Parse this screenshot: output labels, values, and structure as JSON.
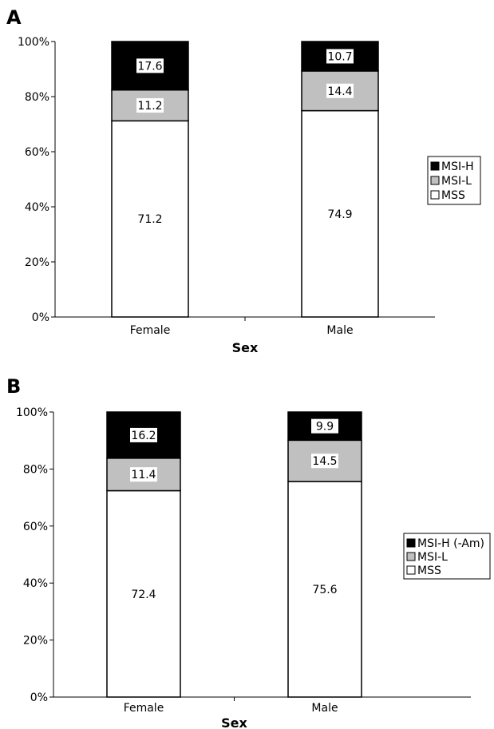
{
  "chart_data": [
    {
      "type": "bar",
      "stacked": true,
      "panel_label": "A",
      "categories": [
        "Female",
        "Male"
      ],
      "series": [
        {
          "name": "MSS",
          "values": [
            71.2,
            74.9
          ],
          "color": "#ffffff"
        },
        {
          "name": "MSI-L",
          "values": [
            11.2,
            14.4
          ],
          "color": "#c0c0c0"
        },
        {
          "name": "MSI-H",
          "values": [
            17.6,
            10.7
          ],
          "color": "#000000"
        }
      ],
      "value_labels": [
        [
          "71.2",
          "74.9"
        ],
        [
          "11.2",
          "14.4"
        ],
        [
          "17.6",
          "10.7"
        ]
      ],
      "yticks": [
        "0%",
        "20%",
        "40%",
        "60%",
        "80%",
        "100%"
      ],
      "ylim": [
        0,
        100
      ],
      "xlabel": "Sex",
      "legend_labels": [
        "MSI-H",
        "MSI-L",
        "MSS"
      ],
      "legend_position": "right",
      "grid": false
    },
    {
      "type": "bar",
      "stacked": true,
      "panel_label": "B",
      "categories": [
        "Female",
        "Male"
      ],
      "series": [
        {
          "name": "MSS",
          "values": [
            72.4,
            75.6
          ],
          "color": "#ffffff"
        },
        {
          "name": "MSI-L",
          "values": [
            11.4,
            14.5
          ],
          "color": "#c0c0c0"
        },
        {
          "name": "MSI-H (-Am)",
          "values": [
            16.2,
            9.9
          ],
          "color": "#000000"
        }
      ],
      "value_labels": [
        [
          "72.4",
          "75.6"
        ],
        [
          "11.4",
          "14.5"
        ],
        [
          "16.2",
          "9.9"
        ]
      ],
      "yticks": [
        "0%",
        "20%",
        "40%",
        "60%",
        "80%",
        "100%"
      ],
      "ylim": [
        0,
        100
      ],
      "xlabel": "Sex",
      "legend_labels": [
        "MSI-H (-Am)",
        "MSI-L",
        "MSS"
      ],
      "legend_position": "right",
      "grid": false
    }
  ]
}
